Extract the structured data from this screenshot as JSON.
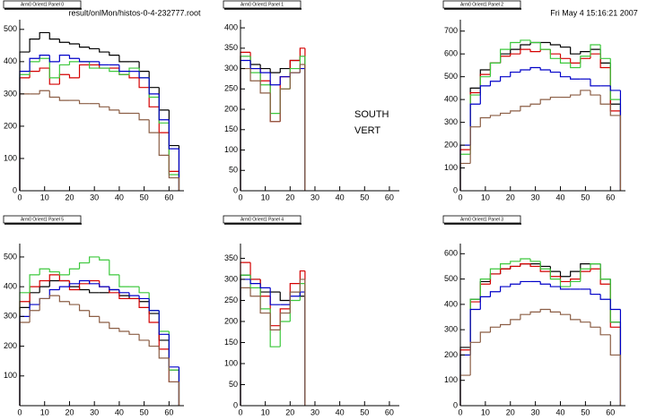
{
  "header": {
    "file": "result/onlMon/histos-0-4-232777.root",
    "date": "Fri May  4 15:16:21 2007"
  },
  "chart_data": [
    {
      "type": "histogram",
      "title": "Arm0 Orient1 Panel 0",
      "bins": [
        0,
        4,
        8,
        12,
        16,
        20,
        24,
        28,
        32,
        36,
        40,
        44,
        48,
        52,
        56,
        60,
        64
      ],
      "xlim": [
        0,
        66
      ],
      "ylim": [
        0,
        530
      ],
      "xticks": [
        0,
        10,
        20,
        30,
        40,
        50,
        60
      ],
      "yticks": [
        0,
        100,
        200,
        300,
        400,
        500
      ],
      "series": [
        {
          "color": "#000000",
          "values": [
            430,
            470,
            490,
            470,
            460,
            455,
            445,
            440,
            430,
            420,
            400,
            400,
            370,
            320,
            250,
            140
          ]
        },
        {
          "color": "#d40000",
          "values": [
            350,
            370,
            380,
            330,
            360,
            350,
            390,
            390,
            380,
            380,
            360,
            350,
            320,
            260,
            180,
            60
          ]
        },
        {
          "color": "#3cc83c",
          "values": [
            360,
            400,
            410,
            350,
            390,
            400,
            400,
            380,
            380,
            370,
            360,
            380,
            350,
            290,
            210,
            50
          ]
        },
        {
          "color": "#0000c8",
          "values": [
            370,
            410,
            420,
            400,
            420,
            410,
            400,
            400,
            390,
            390,
            370,
            370,
            350,
            300,
            220,
            130
          ]
        },
        {
          "color": "#8b5e45",
          "values": [
            300,
            300,
            310,
            290,
            280,
            280,
            270,
            270,
            260,
            250,
            240,
            240,
            220,
            180,
            110,
            40
          ]
        }
      ]
    },
    {
      "type": "histogram",
      "title": "Arm0 Orient1 Panel 1",
      "annotations": [
        "SOUTH",
        "VERT"
      ],
      "bins": [
        0,
        4,
        8,
        12,
        16,
        20,
        24,
        26
      ],
      "xlim": [
        0,
        64
      ],
      "ylim": [
        0,
        420
      ],
      "xticks": [
        0,
        10,
        20,
        30,
        40,
        50,
        60
      ],
      "yticks": [
        0,
        50,
        100,
        150,
        200,
        250,
        300,
        350,
        400
      ],
      "series": [
        {
          "color": "#000000",
          "values": [
            330,
            310,
            300,
            290,
            300,
            320,
            330
          ]
        },
        {
          "color": "#d40000",
          "values": [
            340,
            300,
            270,
            170,
            280,
            320,
            350
          ]
        },
        {
          "color": "#3cc83c",
          "values": [
            330,
            290,
            260,
            190,
            250,
            300,
            330
          ]
        },
        {
          "color": "#0000c8",
          "values": [
            320,
            300,
            290,
            260,
            280,
            290,
            300
          ]
        },
        {
          "color": "#8b5e45",
          "values": [
            300,
            270,
            240,
            170,
            250,
            290,
            310
          ]
        }
      ]
    },
    {
      "type": "histogram",
      "title": "Arm0 Orient1 Panel 2",
      "bins": [
        0,
        4,
        8,
        12,
        16,
        20,
        24,
        28,
        32,
        36,
        40,
        44,
        48,
        52,
        56,
        60,
        64
      ],
      "xlim": [
        0,
        66
      ],
      "ylim": [
        0,
        750
      ],
      "xticks": [
        0,
        10,
        20,
        30,
        40,
        50,
        60
      ],
      "yticks": [
        0,
        100,
        200,
        300,
        400,
        500,
        600,
        700
      ],
      "series": [
        {
          "color": "#000000",
          "values": [
            200,
            450,
            530,
            560,
            600,
            620,
            640,
            650,
            650,
            640,
            630,
            600,
            610,
            620,
            560,
            380
          ]
        },
        {
          "color": "#d40000",
          "values": [
            180,
            430,
            510,
            560,
            590,
            600,
            620,
            610,
            620,
            600,
            580,
            560,
            580,
            600,
            540,
            350
          ]
        },
        {
          "color": "#3cc83c",
          "values": [
            160,
            420,
            500,
            560,
            620,
            650,
            660,
            650,
            620,
            580,
            560,
            540,
            590,
            640,
            580,
            400
          ]
        },
        {
          "color": "#0000c8",
          "values": [
            200,
            380,
            460,
            480,
            500,
            520,
            530,
            540,
            530,
            520,
            500,
            490,
            490,
            460,
            460,
            440
          ]
        },
        {
          "color": "#8b5e45",
          "values": [
            120,
            280,
            320,
            330,
            340,
            350,
            370,
            380,
            400,
            410,
            410,
            420,
            440,
            420,
            380,
            330
          ]
        }
      ]
    },
    {
      "type": "histogram",
      "title": "Arm0 Orient1 Panel 5",
      "bins": [
        0,
        4,
        8,
        12,
        16,
        20,
        24,
        28,
        32,
        36,
        40,
        44,
        48,
        52,
        56,
        60,
        64
      ],
      "xlim": [
        0,
        66
      ],
      "ylim": [
        0,
        545
      ],
      "xticks": [
        0,
        10,
        20,
        30,
        40,
        50,
        60
      ],
      "yticks": [
        100,
        200,
        300,
        400,
        500
      ],
      "series": [
        {
          "color": "#000000",
          "values": [
            330,
            380,
            400,
            420,
            420,
            400,
            390,
            380,
            380,
            390,
            370,
            360,
            350,
            310,
            220,
            120
          ]
        },
        {
          "color": "#d40000",
          "values": [
            350,
            400,
            420,
            440,
            420,
            390,
            410,
            420,
            400,
            380,
            360,
            360,
            330,
            280,
            190,
            80
          ]
        },
        {
          "color": "#3cc83c",
          "values": [
            380,
            440,
            460,
            450,
            440,
            460,
            480,
            500,
            490,
            440,
            400,
            400,
            380,
            320,
            250,
            120
          ]
        },
        {
          "color": "#0000c8",
          "values": [
            300,
            340,
            360,
            390,
            400,
            410,
            420,
            410,
            400,
            390,
            380,
            370,
            360,
            320,
            240,
            130
          ]
        },
        {
          "color": "#8b5e45",
          "values": [
            280,
            320,
            360,
            370,
            350,
            340,
            320,
            300,
            280,
            260,
            250,
            240,
            220,
            200,
            160,
            80
          ]
        }
      ]
    },
    {
      "type": "histogram",
      "title": "Arm0 Orient1 Panel 4",
      "bins": [
        0,
        4,
        8,
        12,
        16,
        20,
        24,
        26
      ],
      "xlim": [
        0,
        64
      ],
      "ylim": [
        0,
        385
      ],
      "xticks": [
        0,
        10,
        20,
        30,
        40,
        50,
        60
      ],
      "yticks": [
        0,
        50,
        100,
        150,
        200,
        250,
        300,
        350
      ],
      "series": [
        {
          "color": "#000000",
          "values": [
            310,
            300,
            270,
            270,
            250,
            270,
            260
          ]
        },
        {
          "color": "#d40000",
          "values": [
            340,
            300,
            260,
            190,
            230,
            290,
            320
          ]
        },
        {
          "color": "#3cc83c",
          "values": [
            310,
            280,
            230,
            140,
            200,
            250,
            290
          ]
        },
        {
          "color": "#0000c8",
          "values": [
            300,
            290,
            280,
            240,
            240,
            260,
            270
          ]
        },
        {
          "color": "#8b5e45",
          "values": [
            280,
            260,
            220,
            180,
            220,
            270,
            300
          ]
        }
      ]
    },
    {
      "type": "histogram",
      "title": "Arm0 Orient1 Panel 3",
      "bins": [
        0,
        4,
        8,
        12,
        16,
        20,
        24,
        28,
        32,
        36,
        40,
        44,
        48,
        52,
        56,
        60,
        64
      ],
      "xlim": [
        0,
        66
      ],
      "ylim": [
        0,
        640
      ],
      "xticks": [
        0,
        10,
        20,
        30,
        40,
        50,
        60
      ],
      "yticks": [
        0,
        100,
        200,
        300,
        400,
        500,
        600
      ],
      "series": [
        {
          "color": "#000000",
          "values": [
            230,
            420,
            490,
            520,
            540,
            550,
            560,
            560,
            550,
            530,
            510,
            530,
            560,
            560,
            500,
            330
          ]
        },
        {
          "color": "#d40000",
          "values": [
            220,
            410,
            480,
            520,
            540,
            550,
            560,
            550,
            530,
            510,
            490,
            500,
            530,
            540,
            480,
            310
          ]
        },
        {
          "color": "#3cc83c",
          "values": [
            200,
            420,
            500,
            540,
            560,
            570,
            580,
            570,
            540,
            500,
            470,
            490,
            540,
            560,
            500,
            330
          ]
        },
        {
          "color": "#0000c8",
          "values": [
            200,
            380,
            430,
            450,
            470,
            480,
            490,
            490,
            480,
            470,
            460,
            460,
            460,
            440,
            420,
            380
          ]
        },
        {
          "color": "#8b5e45",
          "values": [
            120,
            250,
            290,
            310,
            320,
            340,
            360,
            370,
            380,
            370,
            360,
            340,
            330,
            310,
            280,
            200
          ]
        }
      ]
    }
  ]
}
